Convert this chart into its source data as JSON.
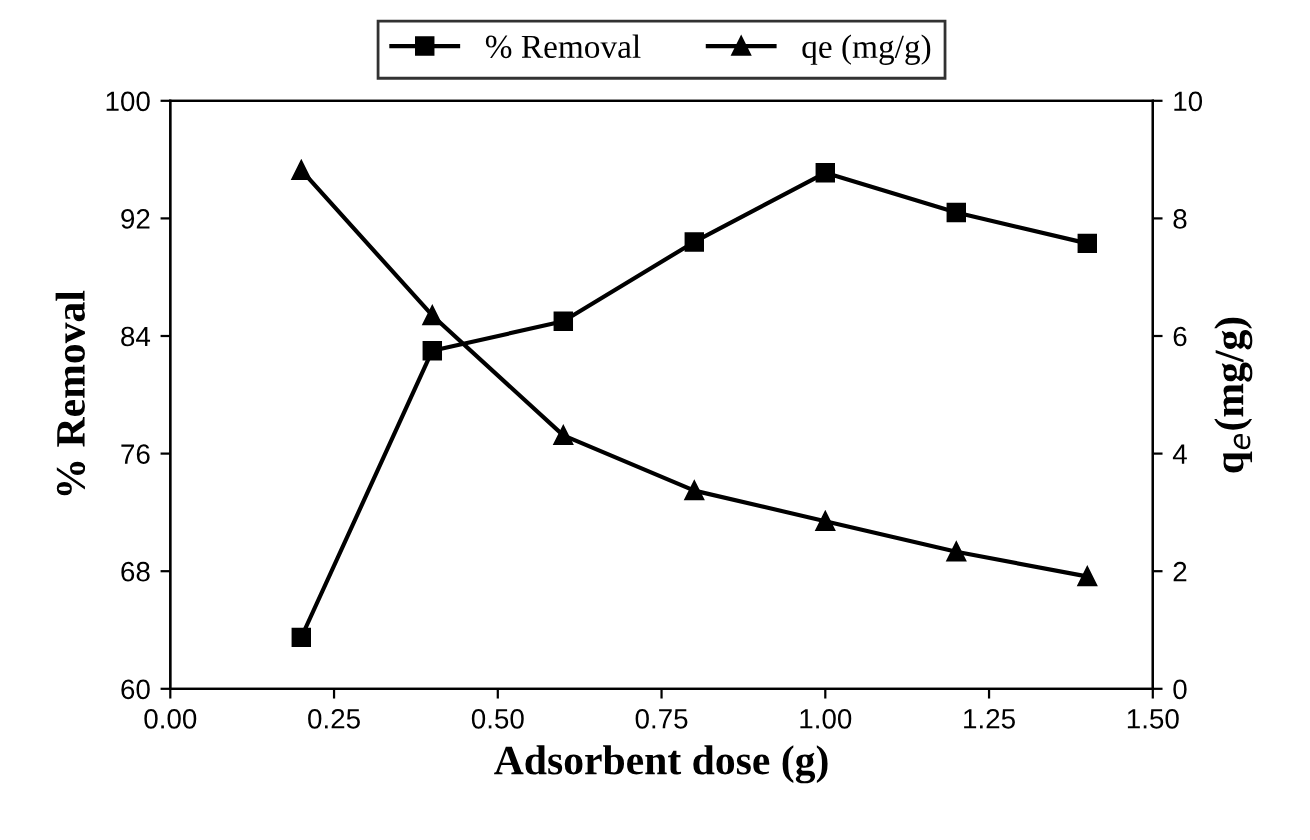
{
  "chart_data": {
    "type": "line",
    "xlabel": "Adsorbent dose (g)",
    "ylabel": "% Removal",
    "y2label": "q$_{e}$(mg/g)",
    "x": [
      0.2,
      0.4,
      0.6,
      0.8,
      1.0,
      1.2,
      1.4
    ],
    "series": [
      {
        "name": "% Removal",
        "color": "#000000",
        "marker": "square",
        "values": [
          63.5,
          83,
          85,
          90.4,
          95.1,
          92.4,
          90.3
        ]
      },
      {
        "name": "qe (mg/g)",
        "color": "#000000",
        "marker": "triangle",
        "axis": "y2",
        "values": [
          8.82,
          6.35,
          4.31,
          3.37,
          2.85,
          2.33,
          1.91
        ]
      }
    ],
    "xlim": [
      0,
      1.5
    ],
    "xticks": [
      {
        "value": 0,
        "label": "0.00"
      },
      {
        "value": 0.25,
        "label": "0.25"
      },
      {
        "value": 0.5,
        "label": "0.50"
      },
      {
        "value": 0.75,
        "label": "0.75"
      },
      {
        "value": 1,
        "label": "1.00"
      },
      {
        "value": 1.25,
        "label": "1.25"
      },
      {
        "value": 1.5,
        "label": "1.50"
      }
    ],
    "ylim": [
      60,
      100
    ],
    "yticks": [
      60,
      68,
      76,
      84,
      92,
      100
    ],
    "y2lim": [
      0,
      10
    ],
    "y2ticks": [
      0,
      2,
      4,
      6,
      8,
      10
    ],
    "grid": false,
    "legend": "top",
    "line_style": "solid"
  }
}
